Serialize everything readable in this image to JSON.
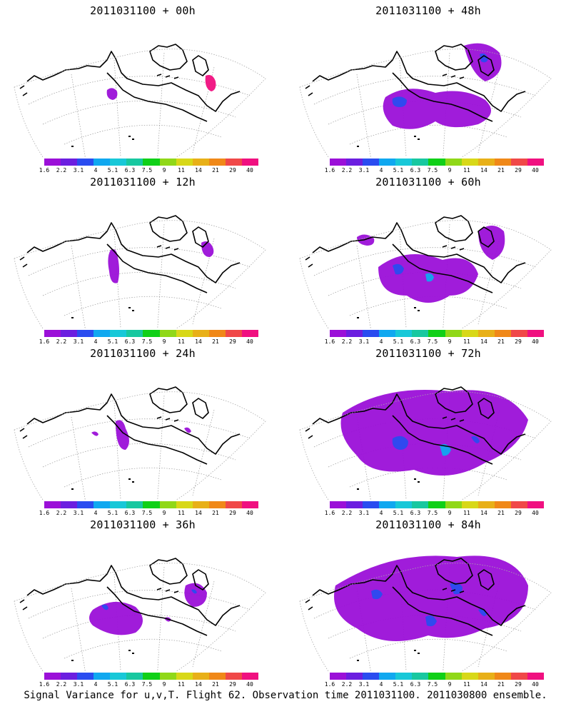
{
  "footer": "Signal Variance for u,v,T. Flight 62. Observation time 2011031100. 2011030800 ensemble.",
  "colorbar": {
    "labels": [
      "1.6",
      "2.2",
      "3.1",
      "4",
      "5.1",
      "6.3",
      "7.5",
      "9",
      "11",
      "14",
      "21",
      "29",
      "40"
    ],
    "colors": [
      "#9b10d8",
      "#6b1ee0",
      "#2a4cf0",
      "#10a8f0",
      "#18c8d8",
      "#18c8a0",
      "#10d018",
      "#90d818",
      "#d8d818",
      "#e8b018",
      "#f08818",
      "#f04848",
      "#f01080"
    ]
  },
  "panels": [
    {
      "title": "2011031100 + 00h"
    },
    {
      "title": "2011031100 + 48h"
    },
    {
      "title": "2011031100 + 12h"
    },
    {
      "title": "2011031100 + 60h"
    },
    {
      "title": "2011031100 + 24h"
    },
    {
      "title": "2011031100 + 72h"
    },
    {
      "title": "2011031100 + 36h"
    },
    {
      "title": "2011031100 + 84h"
    }
  ]
}
